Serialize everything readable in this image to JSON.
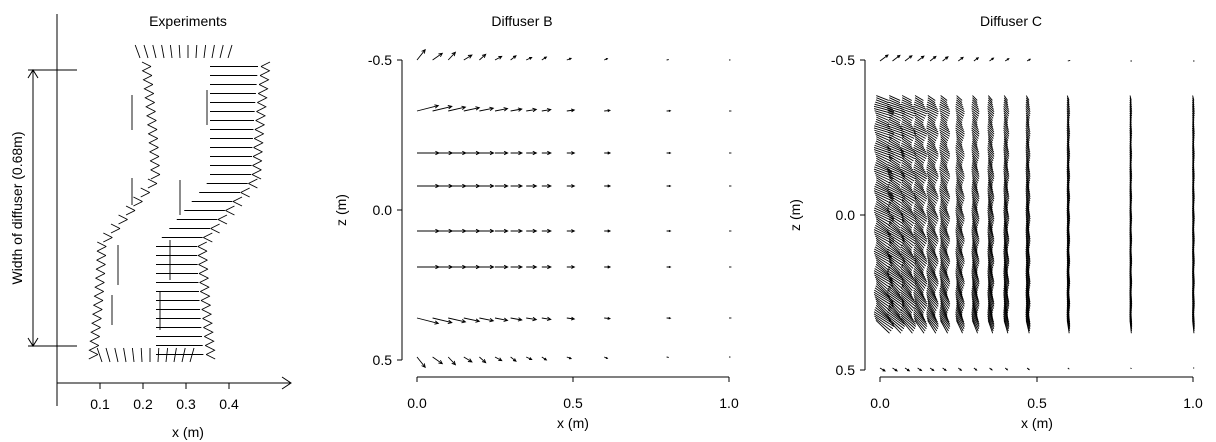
{
  "chart_data": [
    {
      "type": "quiver",
      "title": "Experiments",
      "xlabel": "x (m)",
      "ylabel": "",
      "xticks": [
        "0.1",
        "0.2",
        "0.3",
        "0.4"
      ],
      "xlim": [
        0.0,
        0.5
      ],
      "annotation": "Width of diffuser (0.68m)",
      "grid": false
    },
    {
      "type": "quiver",
      "title": "Diffuser B",
      "xlabel": "x (m)",
      "ylabel": "z (m)",
      "xticks": [
        "0.0",
        "0.5",
        "1.0"
      ],
      "yticks": [
        "-0.5",
        "0.0",
        "0.5"
      ],
      "xlim": [
        0.0,
        1.0
      ],
      "ylim": [
        -0.5,
        0.5
      ],
      "columns_x": [
        0.0,
        0.05,
        0.1,
        0.15,
        0.2,
        0.25,
        0.3,
        0.35,
        0.4,
        0.48,
        0.6,
        0.8,
        1.0
      ],
      "rows_z": [
        -0.5,
        -0.33,
        -0.19,
        -0.08,
        0.07,
        0.19,
        0.36,
        0.49
      ],
      "grid": false
    },
    {
      "type": "quiver",
      "title": "Diffuser C",
      "xlabel": "x (m)",
      "ylabel": "z (m)",
      "xticks": [
        "0.0",
        "0.5",
        "1.0"
      ],
      "yticks": [
        "-0.5",
        "0.0",
        "0.5"
      ],
      "xlim": [
        0.0,
        1.0
      ],
      "ylim": [
        -0.5,
        0.5
      ],
      "columns_x": [
        0.0,
        0.04,
        0.08,
        0.12,
        0.16,
        0.2,
        0.25,
        0.3,
        0.35,
        0.4,
        0.47,
        0.6,
        0.8,
        1.0
      ],
      "grid": false
    }
  ]
}
